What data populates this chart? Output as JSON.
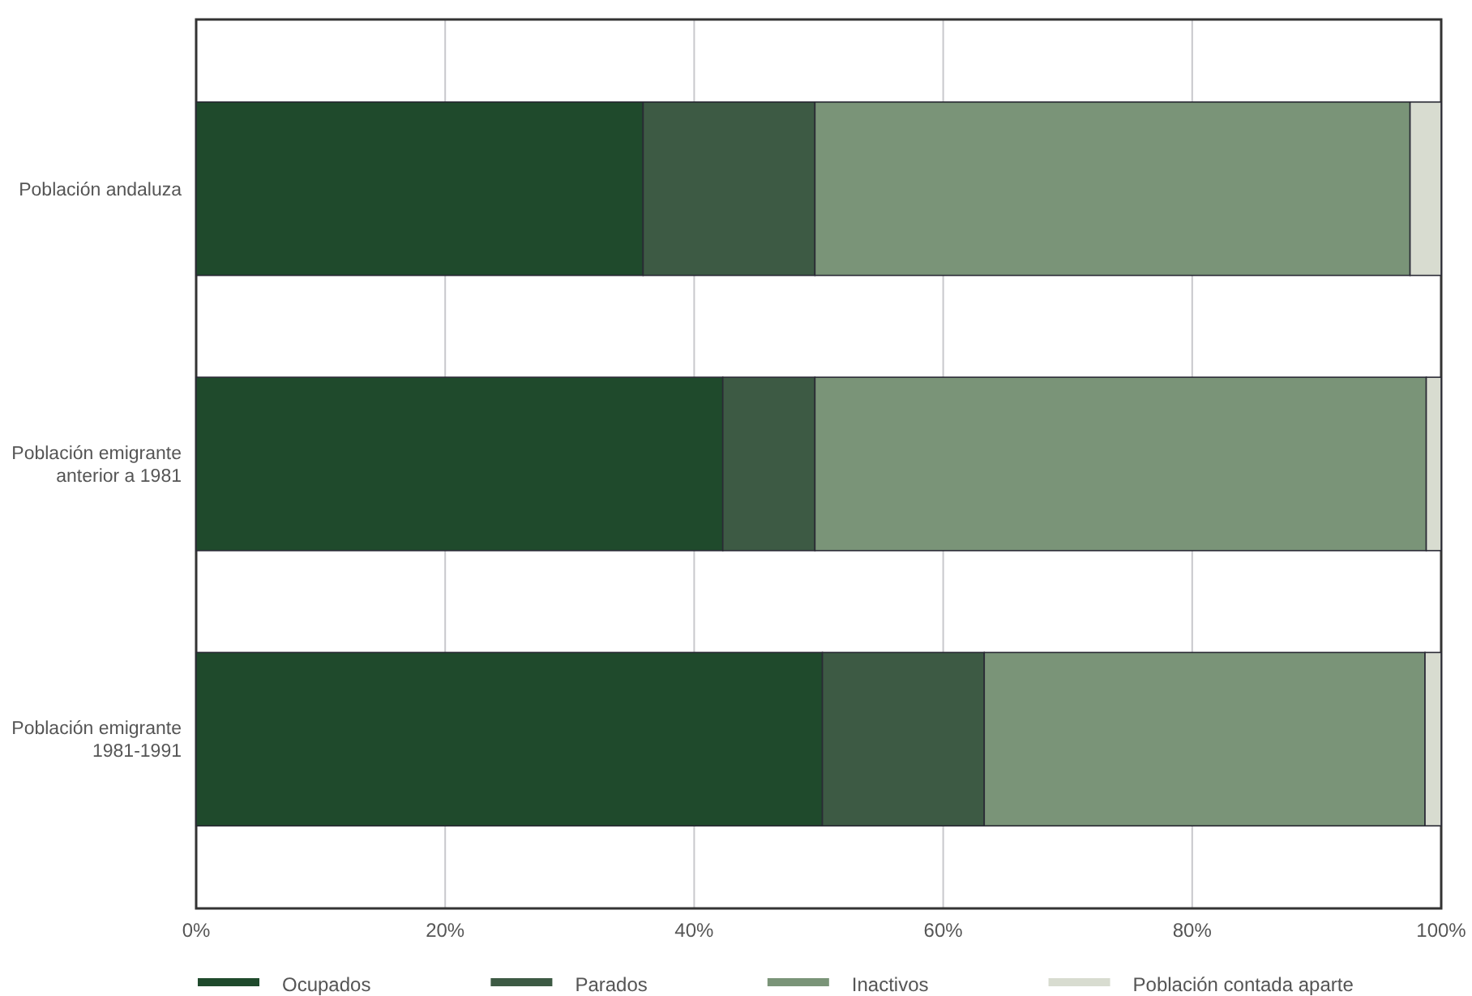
{
  "chart_data": {
    "type": "bar",
    "orientation": "horizontal",
    "stacked": true,
    "categories": [
      "Población andaluza",
      "Población emigrante anterior a 1981",
      "Población emigrante 1981-1991"
    ],
    "series": [
      {
        "name": "Ocupados",
        "color": "#1f4a2c",
        "values": [
          35.9,
          42.3,
          50.3
        ]
      },
      {
        "name": "Parados",
        "color": "#3d5a44",
        "values": [
          13.8,
          7.4,
          13
        ]
      },
      {
        "name": "Inactivos",
        "color": "#7a9478",
        "values": [
          47.8,
          49.1,
          35.4
        ]
      },
      {
        "name": "Población contada aparte",
        "color": "#d8dcd0",
        "values": [
          2.5,
          1.2,
          1.3
        ]
      }
    ],
    "xlim": [
      0,
      100
    ],
    "xticks": [
      {
        "value": 0,
        "label": "0%"
      },
      {
        "value": 20,
        "label": "20%"
      },
      {
        "value": 40,
        "label": "40%"
      },
      {
        "value": 60,
        "label": "60%"
      },
      {
        "value": 80,
        "label": "80%"
      },
      {
        "value": 100,
        "label": "100%"
      }
    ],
    "grid": "x",
    "legend": "bottom"
  }
}
